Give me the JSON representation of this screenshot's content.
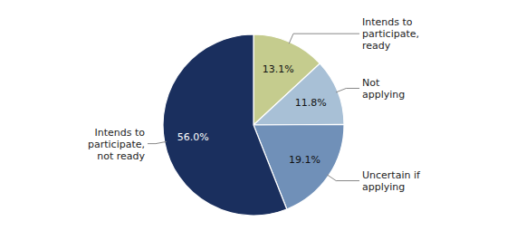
{
  "chart_data": {
    "type": "pie",
    "categories": [
      "Intends to\nparticipate,\nready",
      "Not\napplying",
      "Uncertain if\napplying",
      "Intends to\nparticipate,\nnot ready"
    ],
    "values": [
      13.1,
      11.8,
      19.1,
      56.0
    ],
    "value_labels": [
      "13.1%",
      "11.8%",
      "19.1%",
      "56.0%"
    ],
    "colors": [
      "#c5cc8e",
      "#a8c0d6",
      "#7090b8",
      "#1a2f5e"
    ],
    "data_labels": true
  }
}
